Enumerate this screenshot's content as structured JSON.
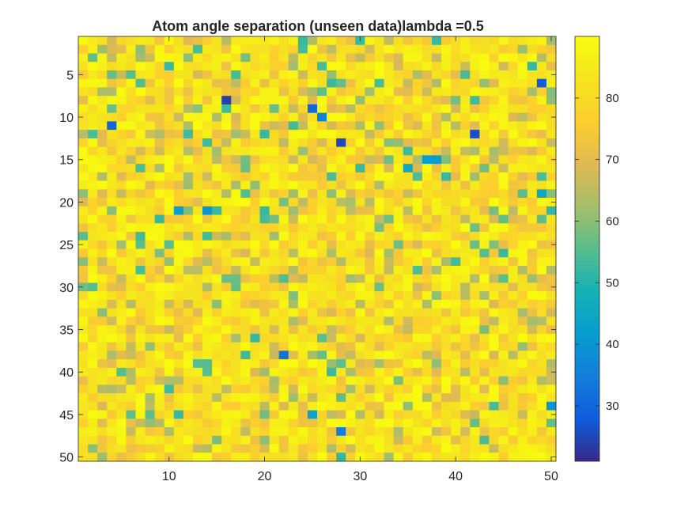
{
  "chart_data": {
    "type": "heatmap",
    "title": "Atom angle separation (unseen data)lambda =0.5",
    "rows": 50,
    "cols": 50,
    "x_ticks": [
      10,
      20,
      30,
      40,
      50
    ],
    "y_ticks": [
      5,
      10,
      15,
      20,
      25,
      30,
      35,
      40,
      45,
      50
    ],
    "clim": [
      21,
      90
    ],
    "colorbar_ticks": [
      30,
      40,
      50,
      60,
      70,
      80
    ],
    "colormap": "parula",
    "notable_low_cells": [
      {
        "row": 6,
        "col": 49,
        "value": 28
      },
      {
        "row": 8,
        "col": 16,
        "value": 24
      },
      {
        "row": 9,
        "col": 25,
        "value": 30
      },
      {
        "row": 10,
        "col": 26,
        "value": 36
      },
      {
        "row": 11,
        "col": 4,
        "value": 30
      },
      {
        "row": 12,
        "col": 42,
        "value": 26
      },
      {
        "row": 13,
        "col": 28,
        "value": 25
      },
      {
        "row": 15,
        "col": 37,
        "value": 42
      },
      {
        "row": 15,
        "col": 38,
        "value": 42
      },
      {
        "row": 16,
        "col": 35,
        "value": 45
      },
      {
        "row": 19,
        "col": 49,
        "value": 45
      },
      {
        "row": 21,
        "col": 11,
        "value": 42
      },
      {
        "row": 21,
        "col": 14,
        "value": 40
      },
      {
        "row": 38,
        "col": 22,
        "value": 33
      },
      {
        "row": 44,
        "col": 50,
        "value": 40
      },
      {
        "row": 45,
        "col": 25,
        "value": 44
      },
      {
        "row": 47,
        "col": 28,
        "value": 35
      }
    ]
  }
}
